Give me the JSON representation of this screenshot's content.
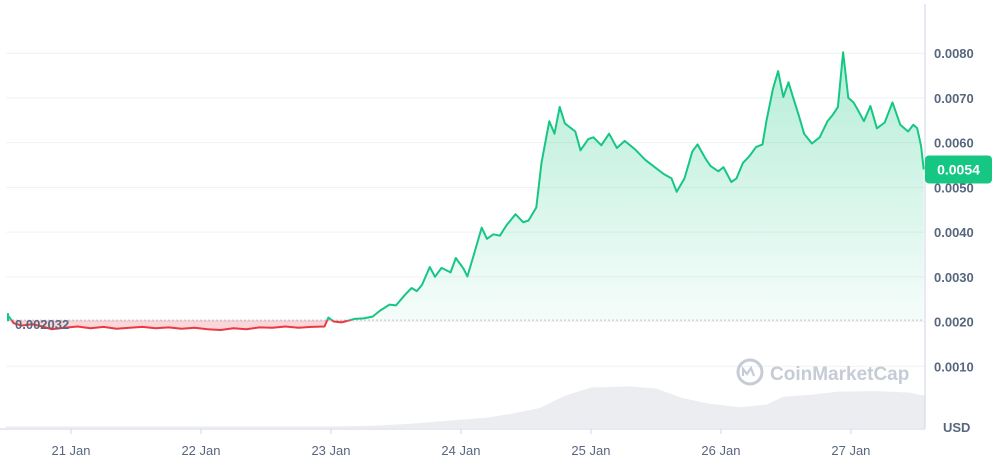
{
  "chart_data": {
    "type": "line",
    "title": "",
    "xlabel": "",
    "ylabel": "",
    "currency_unit": "USD",
    "watermark": "CoinMarketCap",
    "ylim": [
      0,
      0.0091
    ],
    "yticks": [
      "0.0010",
      "0.0020",
      "0.0030",
      "0.0040",
      "0.0050",
      "0.0060",
      "0.0070",
      "0.0080"
    ],
    "xticks": [
      "21 Jan",
      "22 Jan",
      "23 Jan",
      "24 Jan",
      "25 Jan",
      "26 Jan",
      "27 Jan"
    ],
    "baseline_price": 0.002032,
    "baseline_label": "0.002032",
    "current_price_label": "0.0054",
    "colors": {
      "up": "#16c784",
      "down": "#ea3943",
      "grid": "#eff2f5",
      "text": "#58667e",
      "volume": "#e6e8ec"
    },
    "series": [
      {
        "values": [
          [
            20.52,
            0.00212
          ],
          [
            20.56,
            0.00196
          ],
          [
            20.62,
            0.00191
          ],
          [
            20.7,
            0.00194
          ],
          [
            20.78,
            0.00189
          ],
          [
            20.85,
            0.00183
          ],
          [
            20.95,
            0.00186
          ],
          [
            21.05,
            0.00189
          ],
          [
            21.15,
            0.00185
          ],
          [
            21.25,
            0.00188
          ],
          [
            21.35,
            0.00184
          ],
          [
            21.45,
            0.00186
          ],
          [
            21.55,
            0.00188
          ],
          [
            21.65,
            0.00185
          ],
          [
            21.75,
            0.00187
          ],
          [
            21.85,
            0.00184
          ],
          [
            21.95,
            0.00186
          ],
          [
            22.05,
            0.00183
          ],
          [
            22.15,
            0.00181
          ],
          [
            22.25,
            0.00185
          ],
          [
            22.35,
            0.00183
          ],
          [
            22.45,
            0.00187
          ],
          [
            22.55,
            0.00186
          ],
          [
            22.65,
            0.00189
          ],
          [
            22.75,
            0.00186
          ],
          [
            22.85,
            0.00188
          ],
          [
            22.95,
            0.00189
          ],
          [
            22.98,
            0.00209
          ],
          [
            23.02,
            0.002
          ],
          [
            23.08,
            0.00198
          ],
          [
            23.12,
            0.00201
          ],
          [
            23.18,
            0.00206
          ],
          [
            23.25,
            0.00207
          ],
          [
            23.32,
            0.00211
          ],
          [
            23.38,
            0.00225
          ],
          [
            23.45,
            0.00238
          ],
          [
            23.5,
            0.00236
          ],
          [
            23.57,
            0.0026
          ],
          [
            23.62,
            0.00275
          ],
          [
            23.66,
            0.00268
          ],
          [
            23.7,
            0.00282
          ],
          [
            23.76,
            0.00322
          ],
          [
            23.8,
            0.003
          ],
          [
            23.85,
            0.0032
          ],
          [
            23.92,
            0.0031
          ],
          [
            23.96,
            0.00342
          ],
          [
            24.02,
            0.00318
          ],
          [
            24.05,
            0.00301
          ],
          [
            24.1,
            0.0035
          ],
          [
            24.16,
            0.0041
          ],
          [
            24.2,
            0.00385
          ],
          [
            24.25,
            0.00395
          ],
          [
            24.3,
            0.00392
          ],
          [
            24.35,
            0.00415
          ],
          [
            24.42,
            0.0044
          ],
          [
            24.48,
            0.00422
          ],
          [
            24.52,
            0.00426
          ],
          [
            24.58,
            0.00455
          ],
          [
            24.62,
            0.00555
          ],
          [
            24.68,
            0.00648
          ],
          [
            24.72,
            0.0062
          ],
          [
            24.76,
            0.0068
          ],
          [
            24.8,
            0.00643
          ],
          [
            24.88,
            0.00625
          ],
          [
            24.92,
            0.00583
          ],
          [
            24.98,
            0.00608
          ],
          [
            25.02,
            0.00612
          ],
          [
            25.08,
            0.00594
          ],
          [
            25.14,
            0.0062
          ],
          [
            25.2,
            0.00588
          ],
          [
            25.26,
            0.00604
          ],
          [
            25.34,
            0.00585
          ],
          [
            25.42,
            0.00561
          ],
          [
            25.5,
            0.00543
          ],
          [
            25.56,
            0.0053
          ],
          [
            25.62,
            0.0052
          ],
          [
            25.66,
            0.0049
          ],
          [
            25.72,
            0.0052
          ],
          [
            25.78,
            0.0058
          ],
          [
            25.82,
            0.00596
          ],
          [
            25.88,
            0.00565
          ],
          [
            25.92,
            0.00548
          ],
          [
            25.98,
            0.00536
          ],
          [
            26.02,
            0.00545
          ],
          [
            26.08,
            0.00512
          ],
          [
            26.12,
            0.0052
          ],
          [
            26.17,
            0.00555
          ],
          [
            26.22,
            0.0057
          ],
          [
            26.27,
            0.0059
          ],
          [
            26.32,
            0.00596
          ],
          [
            26.35,
            0.00648
          ],
          [
            26.4,
            0.0072
          ],
          [
            26.44,
            0.0076
          ],
          [
            26.48,
            0.00702
          ],
          [
            26.52,
            0.00735
          ],
          [
            26.55,
            0.00706
          ],
          [
            26.6,
            0.0066
          ],
          [
            26.64,
            0.0062
          ],
          [
            26.7,
            0.00598
          ],
          [
            26.76,
            0.00612
          ],
          [
            26.82,
            0.00648
          ],
          [
            26.86,
            0.00662
          ],
          [
            26.9,
            0.0068
          ],
          [
            26.94,
            0.00802
          ],
          [
            26.98,
            0.007
          ],
          [
            27.02,
            0.0069
          ],
          [
            27.05,
            0.00675
          ],
          [
            27.1,
            0.00648
          ],
          [
            27.15,
            0.00682
          ],
          [
            27.2,
            0.00632
          ],
          [
            27.26,
            0.00645
          ],
          [
            27.32,
            0.0069
          ],
          [
            27.38,
            0.0064
          ],
          [
            27.44,
            0.00625
          ],
          [
            27.48,
            0.0064
          ],
          [
            27.51,
            0.00632
          ],
          [
            27.54,
            0.00592
          ],
          [
            27.56,
            0.0054
          ]
        ]
      }
    ],
    "volume": [
      [
        20.5,
        0.03
      ],
      [
        22.0,
        0.03
      ],
      [
        22.95,
        0.03
      ],
      [
        23.3,
        0.04
      ],
      [
        23.6,
        0.08
      ],
      [
        23.9,
        0.14
      ],
      [
        24.2,
        0.2
      ],
      [
        24.4,
        0.28
      ],
      [
        24.6,
        0.38
      ],
      [
        24.8,
        0.62
      ],
      [
        25.0,
        0.78
      ],
      [
        25.3,
        0.8
      ],
      [
        25.5,
        0.76
      ],
      [
        25.7,
        0.58
      ],
      [
        25.9,
        0.47
      ],
      [
        26.15,
        0.4
      ],
      [
        26.35,
        0.45
      ],
      [
        26.48,
        0.6
      ],
      [
        26.7,
        0.64
      ],
      [
        26.9,
        0.7
      ],
      [
        27.2,
        0.71
      ],
      [
        27.45,
        0.68
      ],
      [
        27.57,
        0.62
      ]
    ]
  }
}
